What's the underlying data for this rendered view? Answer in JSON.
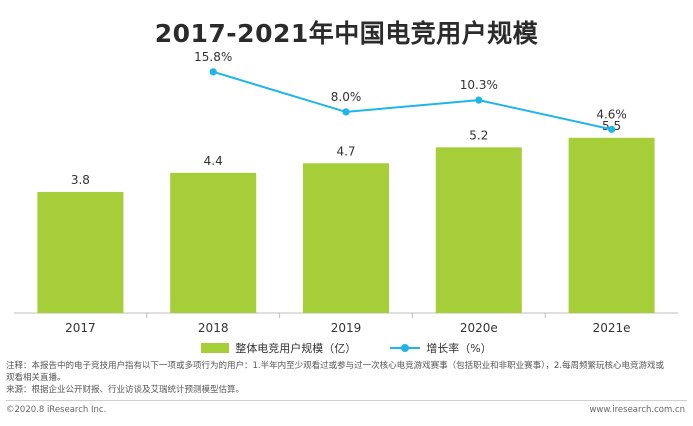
{
  "chart_data": {
    "type": "bar",
    "title": "2017-2021年中国电竞用户规模",
    "categories": [
      "2017",
      "2018",
      "2019",
      "2020e",
      "2021e"
    ],
    "series": [
      {
        "name": "整体电竞用户规模（亿）",
        "type": "bar",
        "values": [
          3.8,
          4.4,
          4.7,
          5.2,
          5.5
        ],
        "labels": [
          "3.8",
          "4.4",
          "4.7",
          "5.2",
          "5.5"
        ]
      },
      {
        "name": "增长率（%）",
        "type": "line",
        "values": [
          null,
          15.8,
          8.0,
          10.3,
          4.6
        ],
        "labels": [
          "",
          "15.8%",
          "8.0%",
          "10.3%",
          "4.6%"
        ]
      }
    ],
    "bar_ylim": [
      0,
      7
    ],
    "line_ylim": [
      0,
      22
    ],
    "grid": false,
    "legend_position": "bottom"
  },
  "colors": {
    "bar": "#a6ce39",
    "line": "#1eb6e8",
    "axis": "#bfbfbf"
  },
  "notes": {
    "line1": "注释：本报告中的电子竞技用户指有以下一项或多项行为的用户：1.半年内至少观看过或参与过一次核心电竞游戏赛事（包括职业和非职业赛事），2.每周频繁玩核心电竞游戏或",
    "line2": "观看相关直播。",
    "line3": "来源：根据企业公开财报、行业访谈及艾瑞统计预测模型估算。"
  },
  "footer": {
    "left": "©2020.8 iResearch Inc.",
    "right": "www.iresearch.com.cn"
  }
}
